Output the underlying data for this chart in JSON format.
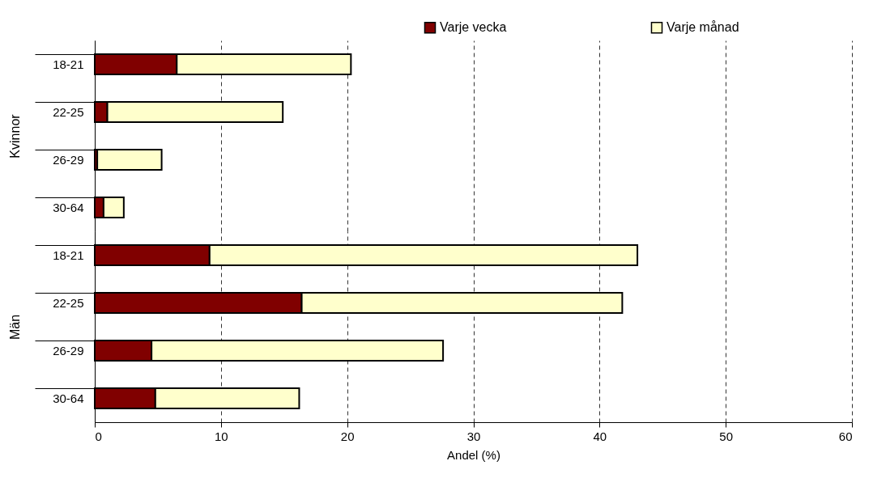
{
  "chart_data": [
    {
      "type": "bar",
      "orientation": "horizontal",
      "stacked": true,
      "ylabel": "Kvinnor",
      "categories": [
        "18-21",
        "22-25",
        "26-29",
        "30-64"
      ],
      "series": [
        {
          "name": "Varje vecka",
          "color": "#800000",
          "values": [
            6.5,
            1.0,
            0.2,
            0.7
          ]
        },
        {
          "name": "Varje månad",
          "color": "#ffffcc",
          "values": [
            13.8,
            13.9,
            5.1,
            1.6
          ]
        }
      ],
      "xlim": [
        0,
        60
      ],
      "xticks": [
        0,
        10,
        20,
        30,
        40,
        50,
        60
      ],
      "grid": "x",
      "legend": "top",
      "tick_labels": "y"
    },
    {
      "type": "bar",
      "orientation": "horizontal",
      "stacked": true,
      "ylabel": "Män",
      "xlabel": "Andel (%)",
      "categories": [
        "18-21",
        "22-25",
        "26-29",
        "30-64"
      ],
      "series": [
        {
          "color": "#800000",
          "values": [
            9.1,
            16.4,
            4.5,
            4.8
          ]
        },
        {
          "color": "#ffffcc",
          "values": [
            33.9,
            25.4,
            23.1,
            11.4
          ]
        }
      ],
      "xlim": [
        0,
        60
      ],
      "xticks": [
        0,
        10,
        20,
        30,
        40,
        50,
        60
      ],
      "grid": "x"
    }
  ]
}
